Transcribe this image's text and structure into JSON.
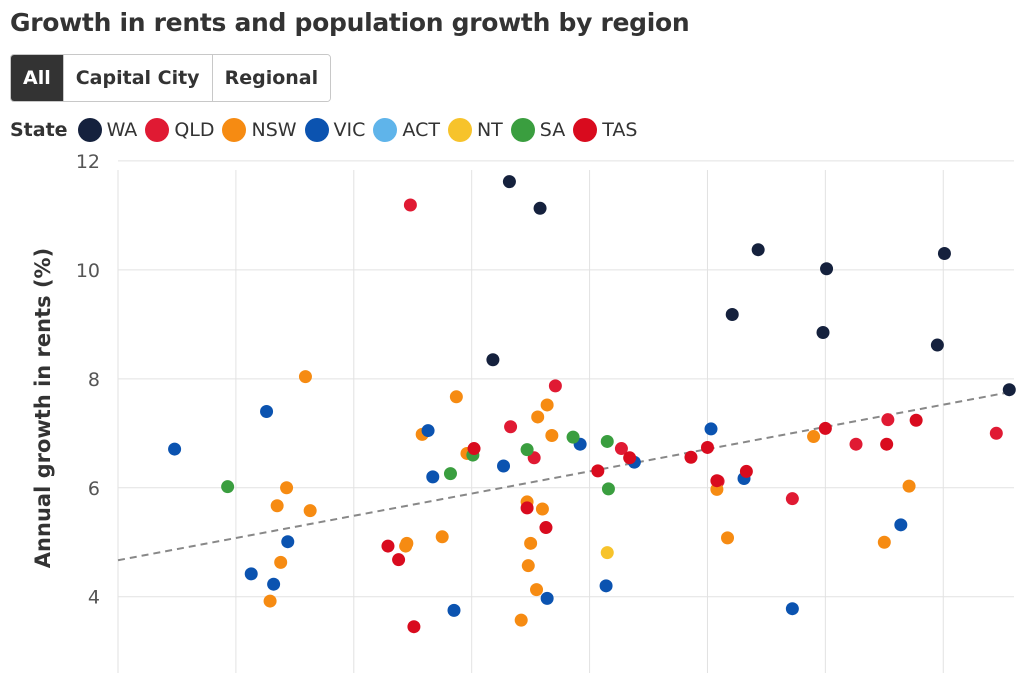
{
  "title": "Growth in rents and population growth by region",
  "filters": [
    {
      "label": "All",
      "active": true
    },
    {
      "label": "Capital City",
      "active": false
    },
    {
      "label": "Regional",
      "active": false
    }
  ],
  "legend": {
    "label": "State",
    "items": [
      {
        "name": "WA",
        "color": "#15213d"
      },
      {
        "name": "QLD",
        "color": "#e01a33"
      },
      {
        "name": "NSW",
        "color": "#f68b12"
      },
      {
        "name": "VIC",
        "color": "#0b53b0"
      },
      {
        "name": "ACT",
        "color": "#5fb4ea"
      },
      {
        "name": "NT",
        "color": "#f7c32b"
      },
      {
        "name": "SA",
        "color": "#3a9e3f"
      },
      {
        "name": "TAS",
        "color": "#d90b1e"
      }
    ]
  },
  "chart_data": {
    "type": "scatter",
    "title": "Growth in rents and population growth by region",
    "xlabel": "",
    "ylabel": "Annual growth in rents (%)",
    "ylim": [
      2.6,
      12.2
    ],
    "xlim": [
      -0.3,
      7.3
    ],
    "yticks": [
      4,
      6,
      8,
      10,
      12
    ],
    "xgrid": [
      0.7,
      1.7,
      2.7,
      3.7,
      4.7,
      5.7,
      6.7
    ],
    "grid": true,
    "legend_placement": "top",
    "trendline": {
      "x": [
        -0.3,
        7.3
      ],
      "y": [
        4.67,
        7.77
      ]
    },
    "series": [
      {
        "name": "WA",
        "color": "#15213d",
        "points": [
          [
            2.88,
            8.35
          ],
          [
            3.02,
            11.62
          ],
          [
            3.28,
            11.13
          ],
          [
            4.91,
            9.18
          ],
          [
            5.13,
            10.37
          ],
          [
            5.68,
            8.85
          ],
          [
            5.71,
            10.02
          ],
          [
            6.65,
            8.62
          ],
          [
            6.71,
            10.3
          ],
          [
            7.26,
            7.8
          ]
        ]
      },
      {
        "name": "QLD",
        "color": "#e01a33",
        "points": [
          [
            2.18,
            11.19
          ],
          [
            3.03,
            7.12
          ],
          [
            3.23,
            6.55
          ],
          [
            3.41,
            7.87
          ],
          [
            3.97,
            6.72
          ],
          [
            4.79,
            6.12
          ],
          [
            5.42,
            5.8
          ],
          [
            5.96,
            6.8
          ],
          [
            6.23,
            7.25
          ],
          [
            7.15,
            7.0
          ]
        ]
      },
      {
        "name": "NSW",
        "color": "#f68b12",
        "points": [
          [
            1.29,
            8.04
          ],
          [
            1.05,
            5.67
          ],
          [
            1.13,
            6.0
          ],
          [
            1.33,
            5.58
          ],
          [
            0.99,
            3.92
          ],
          [
            1.08,
            4.63
          ],
          [
            2.14,
            4.93
          ],
          [
            2.15,
            4.98
          ],
          [
            2.28,
            6.98
          ],
          [
            2.45,
            5.1
          ],
          [
            2.57,
            7.67
          ],
          [
            2.66,
            6.63
          ],
          [
            3.17,
            5.74
          ],
          [
            3.18,
            4.57
          ],
          [
            3.2,
            4.98
          ],
          [
            3.12,
            3.57
          ],
          [
            3.26,
            7.3
          ],
          [
            3.34,
            7.52
          ],
          [
            3.38,
            6.96
          ],
          [
            3.3,
            5.61
          ],
          [
            3.25,
            4.13
          ],
          [
            4.78,
            5.97
          ],
          [
            4.87,
            5.08
          ],
          [
            5.6,
            6.94
          ],
          [
            6.2,
            5.0
          ],
          [
            6.41,
            6.03
          ]
        ]
      },
      {
        "name": "VIC",
        "color": "#0b53b0",
        "points": [
          [
            0.18,
            6.71
          ],
          [
            0.96,
            7.4
          ],
          [
            0.83,
            4.42
          ],
          [
            1.02,
            4.23
          ],
          [
            1.14,
            5.01
          ],
          [
            2.33,
            7.05
          ],
          [
            2.37,
            6.2
          ],
          [
            2.55,
            3.75
          ],
          [
            2.97,
            6.4
          ],
          [
            3.34,
            3.97
          ],
          [
            3.62,
            6.8
          ],
          [
            3.84,
            4.2
          ],
          [
            4.08,
            6.47
          ],
          [
            4.73,
            7.08
          ],
          [
            5.01,
            6.17
          ],
          [
            5.42,
            3.78
          ],
          [
            6.34,
            5.32
          ]
        ]
      },
      {
        "name": "ACT",
        "color": "#5fb4ea",
        "points": []
      },
      {
        "name": "NT",
        "color": "#f7c32b",
        "points": [
          [
            3.85,
            4.81
          ]
        ]
      },
      {
        "name": "SA",
        "color": "#3a9e3f",
        "points": [
          [
            0.63,
            6.02
          ],
          [
            2.52,
            6.26
          ],
          [
            2.71,
            6.6
          ],
          [
            3.17,
            6.7
          ],
          [
            3.56,
            6.93
          ],
          [
            3.85,
            6.85
          ],
          [
            3.86,
            5.98
          ]
        ]
      },
      {
        "name": "TAS",
        "color": "#d90b1e",
        "points": [
          [
            1.99,
            4.93
          ],
          [
            2.08,
            4.68
          ],
          [
            2.21,
            3.45
          ],
          [
            2.72,
            6.72
          ],
          [
            3.17,
            5.63
          ],
          [
            3.33,
            5.27
          ],
          [
            3.77,
            6.31
          ],
          [
            4.04,
            6.55
          ],
          [
            4.56,
            6.56
          ],
          [
            4.7,
            6.74
          ],
          [
            4.78,
            6.13
          ],
          [
            5.03,
            6.3
          ],
          [
            5.7,
            7.09
          ],
          [
            6.47,
            7.24
          ],
          [
            6.22,
            6.8
          ]
        ]
      }
    ]
  }
}
